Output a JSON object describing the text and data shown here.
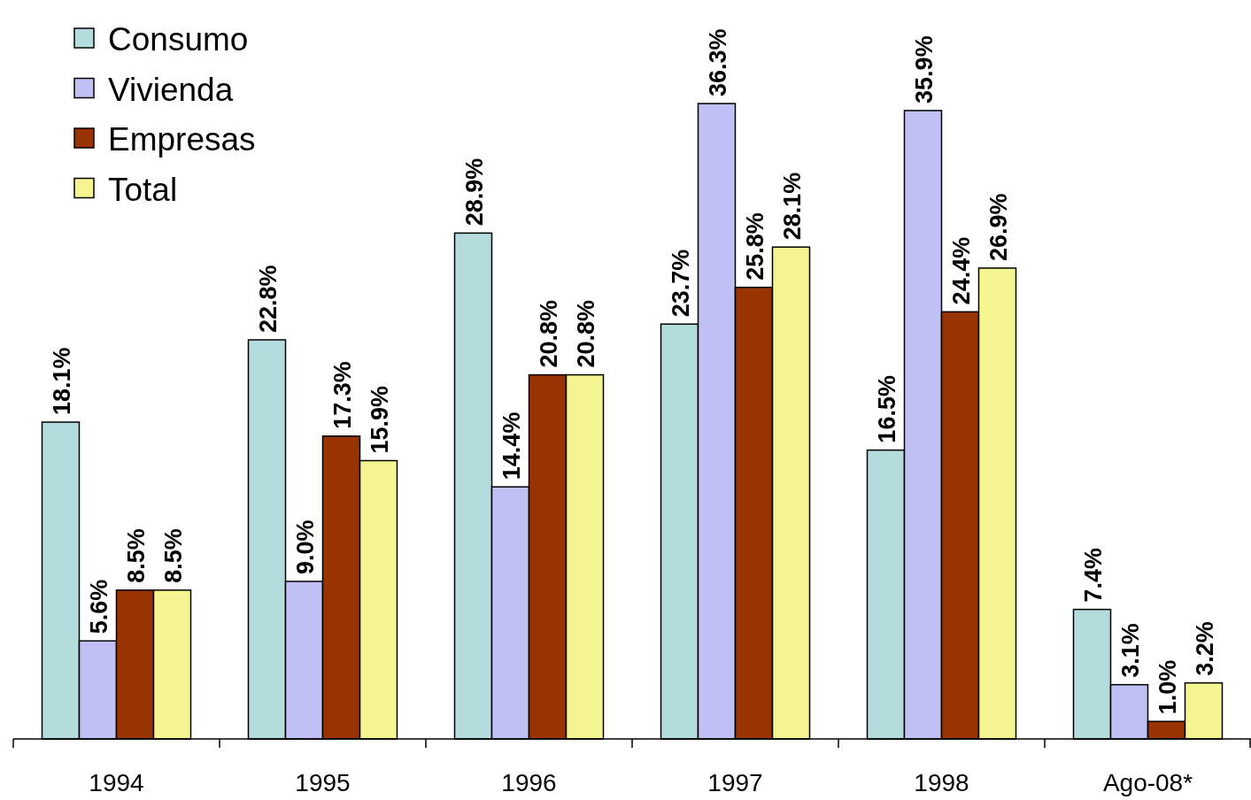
{
  "chart_data": {
    "type": "bar",
    "categories": [
      "1994",
      "1995",
      "1996",
      "1997",
      "1998",
      "Ago-08*"
    ],
    "series": [
      {
        "name": "Consumo",
        "color": "#b4dcdc",
        "values": [
          18.1,
          22.8,
          28.9,
          23.7,
          16.5,
          7.4
        ],
        "value_labels": [
          "18.1%",
          "22.8%",
          "28.9%",
          "23.7%",
          "16.5%",
          "7.4%"
        ]
      },
      {
        "name": "Vivienda",
        "color": "#c0c0f4",
        "values": [
          5.6,
          9.0,
          14.4,
          36.3,
          35.9,
          3.1
        ],
        "value_labels": [
          "5.6%",
          "9.0%",
          "14.4%",
          "36.3%",
          "35.9%",
          "3.1%"
        ]
      },
      {
        "name": "Empresas",
        "color": "#993300",
        "values": [
          8.5,
          17.3,
          20.8,
          25.8,
          24.4,
          1.0
        ],
        "value_labels": [
          "8.5%",
          "17.3%",
          "20.8%",
          "25.8%",
          "24.4%",
          "1.0%"
        ]
      },
      {
        "name": "Total",
        "color": "#f4f490",
        "values": [
          8.5,
          15.9,
          20.8,
          28.1,
          26.9,
          3.2
        ],
        "value_labels": [
          "8.5%",
          "15.9%",
          "20.8%",
          "28.1%",
          "26.9%",
          "3.2%"
        ]
      }
    ],
    "legend": "top left"
  }
}
